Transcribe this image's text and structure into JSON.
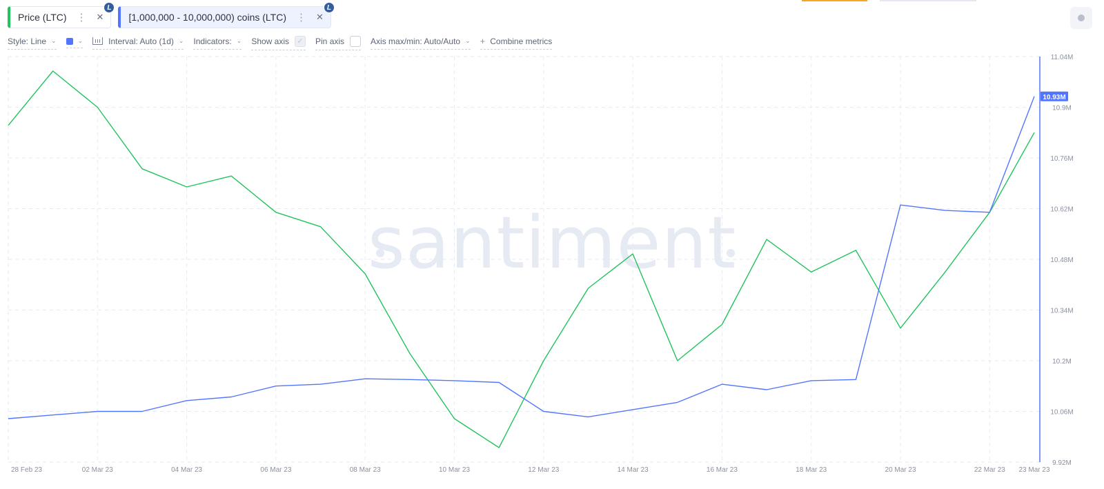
{
  "tabs": [
    {
      "label": "Price (LTC)",
      "color": "#21c35c",
      "badge": "L"
    },
    {
      "label": "[1,000,000 - 10,000,000) coins (LTC)",
      "color": "#5275ff",
      "badge": "L"
    }
  ],
  "settings": {
    "style": "Style: Line",
    "interval": "Interval: Auto (1d)",
    "indicators": "Indicators:",
    "show_axis": "Show axis",
    "pin_axis": "Pin axis",
    "axis_maxmin": "Axis max/min: Auto/Auto",
    "combine": "Combine metrics",
    "series_color": "#5275ff"
  },
  "watermark": "santiment",
  "chart_data": {
    "type": "line",
    "x": [
      "28 Feb 23",
      "01 Mar 23",
      "02 Mar 23",
      "03 Mar 23",
      "04 Mar 23",
      "05 Mar 23",
      "06 Mar 23",
      "07 Mar 23",
      "08 Mar 23",
      "09 Mar 23",
      "10 Mar 23",
      "11 Mar 23",
      "12 Mar 23",
      "13 Mar 23",
      "14 Mar 23",
      "15 Mar 23",
      "16 Mar 23",
      "17 Mar 23",
      "18 Mar 23",
      "19 Mar 23",
      "20 Mar 23",
      "21 Mar 23",
      "22 Mar 23",
      "23 Mar 23"
    ],
    "x_tick_labels": [
      "28 Feb 23",
      "02 Mar 23",
      "04 Mar 23",
      "06 Mar 23",
      "08 Mar 23",
      "10 Mar 23",
      "12 Mar 23",
      "14 Mar 23",
      "16 Mar 23",
      "18 Mar 23",
      "20 Mar 23",
      "22 Mar 23",
      "23 Mar 23"
    ],
    "y_tick_labels": [
      "11.04M",
      "10.9M",
      "10.76M",
      "10.62M",
      "10.48M",
      "10.34M",
      "10.2M",
      "10.06M",
      "9.92M"
    ],
    "y_ticks": [
      11.04,
      10.9,
      10.76,
      10.62,
      10.48,
      10.34,
      10.2,
      10.06,
      9.92
    ],
    "ylim": [
      9.92,
      11.04
    ],
    "y_unit": "M",
    "grid": true,
    "current_value_label": "10.93M",
    "current_value": 10.93,
    "series": [
      {
        "color": "#5275ff",
        "axis": "right",
        "values": [
          10.04,
          10.05,
          10.06,
          10.06,
          10.09,
          10.1,
          10.13,
          10.135,
          10.15,
          10.148,
          10.145,
          10.14,
          10.06,
          10.045,
          10.065,
          10.085,
          10.135,
          10.12,
          10.145,
          10.148,
          10.63,
          10.615,
          10.61,
          10.93
        ]
      },
      {
        "color": "#21c35c",
        "axis": "hidden",
        "values": [
          10.85,
          11.0,
          10.9,
          10.73,
          10.68,
          10.71,
          10.61,
          10.57,
          10.44,
          10.22,
          10.04,
          9.96,
          10.2,
          10.4,
          10.495,
          10.2,
          10.3,
          10.535,
          10.445,
          10.505,
          10.29,
          10.445,
          10.61,
          10.83
        ]
      }
    ]
  }
}
